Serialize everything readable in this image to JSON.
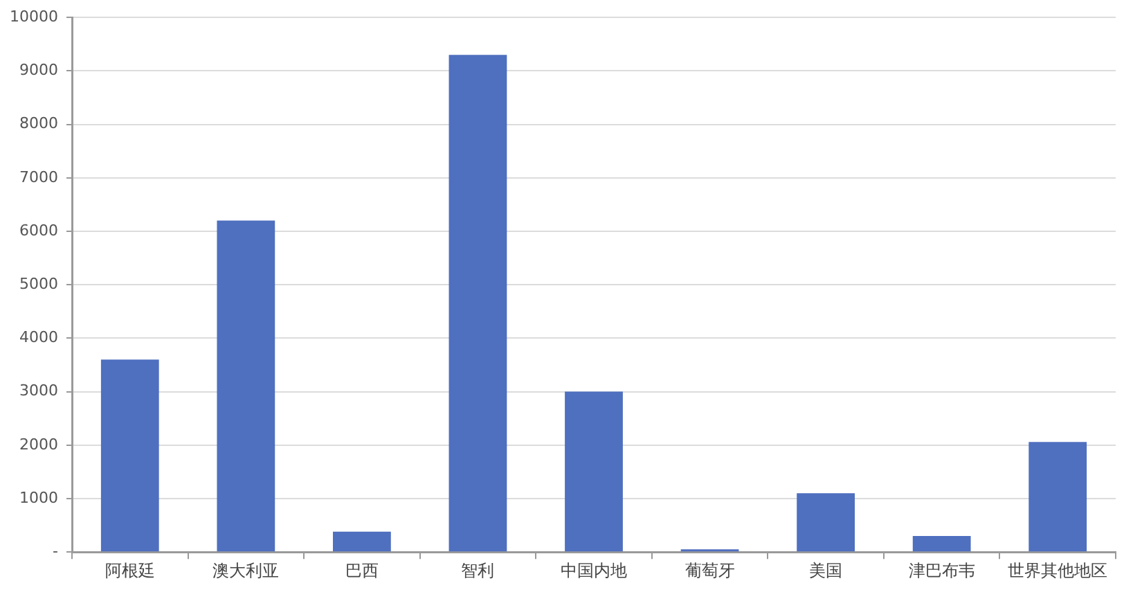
{
  "chart_data": {
    "type": "bar",
    "categories": [
      "阿根廷",
      "澳大利亚",
      "巴西",
      "智利",
      "中国内地",
      "葡萄牙",
      "美国",
      "津巴布韦",
      "世界其他地区"
    ],
    "values": [
      3600,
      6200,
      380,
      9300,
      3000,
      50,
      1100,
      300,
      2060
    ],
    "color": "#4f6fbf",
    "ylim": [
      0,
      10000
    ],
    "yticks": [
      {
        "value": 0,
        "label": "-"
      },
      1000,
      2000,
      3000,
      4000,
      5000,
      6000,
      7000,
      8000,
      9000,
      10000
    ],
    "grid": "y",
    "legend": false
  }
}
